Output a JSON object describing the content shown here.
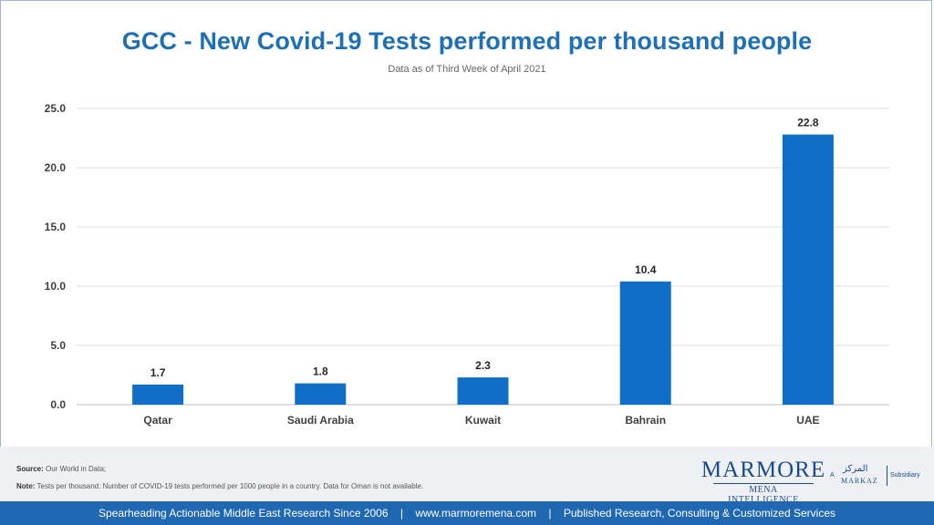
{
  "chart_data": {
    "type": "bar",
    "title": "GCC - New Covid-19 Tests performed per thousand people",
    "subtitle": "Data as of Third Week of April 2021",
    "categories": [
      "Qatar",
      "Saudi Arabia",
      "Kuwait",
      "Bahrain",
      "UAE"
    ],
    "values": [
      1.7,
      1.8,
      2.3,
      10.4,
      22.8
    ],
    "value_labels": [
      "1.7",
      "1.8",
      "2.3",
      "10.4",
      "22.8"
    ],
    "yticks": [
      "0.0",
      "5.0",
      "10.0",
      "15.0",
      "20.0",
      "25.0"
    ],
    "ylim": [
      0,
      25
    ],
    "grid": true,
    "bar_color": "#0f6fc6"
  },
  "source": {
    "label": "Source:",
    "text": "Our World in Data;"
  },
  "note": {
    "label": "Note:",
    "text": "Tests per thousand: Number of COVID-19 tests performed per 1000 people in a country. Data for Oman is not available."
  },
  "logo": {
    "main": "MARMORE",
    "sub": "MENA INTELLIGENCE",
    "a": "A",
    "markaz_arabic": "المركز",
    "markaz": "MARKAZ",
    "subsidiary": "Subsidiary"
  },
  "footer": {
    "left": "Spearheading Actionable Middle East Research Since 2006",
    "sep": "|",
    "url": "www.marmoremena.com",
    "right": "Published Research, Consulting & Customized Services"
  }
}
